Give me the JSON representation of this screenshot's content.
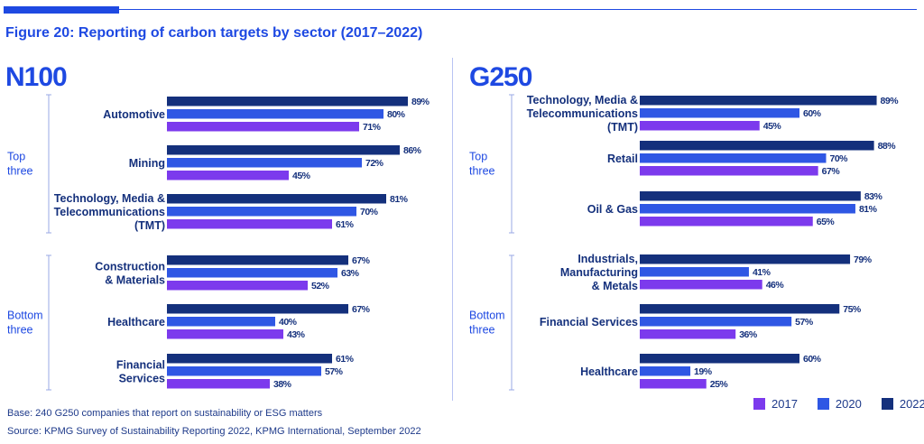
{
  "figure": {
    "title": "Figure 20: Reporting of carbon targets by sector (2017–2022)",
    "base_note": "Base: 240 G250 companies that report on sustainability or ESG matters",
    "source_note": "Source: KPMG Survey of Sustainability Reporting 2022, KPMG International, September 2022"
  },
  "colors": {
    "2017": "#7c3aed",
    "2020": "#2f57e4",
    "2022": "#14307c",
    "accent": "#1e49e2"
  },
  "legend": [
    {
      "label": "2017",
      "color": "#7c3aed"
    },
    {
      "label": "2020",
      "color": "#2f57e4"
    },
    {
      "label": "2022",
      "color": "#14307c"
    }
  ],
  "chart_data": [
    {
      "type": "bar",
      "orientation": "horizontal",
      "title": "N100",
      "groups": [
        {
          "label": "Top three",
          "categories": [
            "Automotive",
            "Mining",
            "Technology, Media & Telecommunications (TMT)"
          ]
        },
        {
          "label": "Bottom three",
          "categories": [
            "Construction & Materials",
            "Healthcare",
            "Financial Services"
          ]
        }
      ],
      "categories": [
        "Automotive",
        "Mining",
        "Technology, Media & Telecommunications (TMT)",
        "Construction & Materials",
        "Healthcare",
        "Financial Services"
      ],
      "category_lines": [
        [
          "Automotive"
        ],
        [
          "Mining"
        ],
        [
          "Technology, Media &",
          "Telecommunications",
          "(TMT)"
        ],
        [
          "Construction",
          "& Materials"
        ],
        [
          "Healthcare"
        ],
        [
          "Financial",
          "Services"
        ]
      ],
      "series": [
        {
          "name": "2022",
          "values": [
            89,
            86,
            81,
            67,
            67,
            61
          ]
        },
        {
          "name": "2020",
          "values": [
            80,
            72,
            70,
            63,
            40,
            57
          ]
        },
        {
          "name": "2017",
          "values": [
            71,
            45,
            61,
            52,
            43,
            38
          ]
        }
      ],
      "value_suffix": "%",
      "xlim": [
        0,
        100
      ],
      "grid": false
    },
    {
      "type": "bar",
      "orientation": "horizontal",
      "title": "G250",
      "groups": [
        {
          "label": "Top three",
          "categories": [
            "Technology, Media & Telecommunications (TMT)",
            "Retail",
            "Oil & Gas"
          ]
        },
        {
          "label": "Bottom three",
          "categories": [
            "Industrials, Manufacturing & Metals",
            "Financial Services",
            "Healthcare"
          ]
        }
      ],
      "categories": [
        "Technology, Media & Telecommunications (TMT)",
        "Retail",
        "Oil & Gas",
        "Industrials, Manufacturing & Metals",
        "Financial Services",
        "Healthcare"
      ],
      "category_lines": [
        [
          "Technology, Media &",
          "Telecommunications",
          "(TMT)"
        ],
        [
          "Retail"
        ],
        [
          "Oil & Gas"
        ],
        [
          "Industrials,",
          "Manufacturing",
          "& Metals"
        ],
        [
          "Financial Services"
        ],
        [
          "Healthcare"
        ]
      ],
      "series": [
        {
          "name": "2022",
          "values": [
            89,
            88,
            83,
            79,
            75,
            60
          ]
        },
        {
          "name": "2020",
          "values": [
            60,
            70,
            81,
            41,
            57,
            19
          ]
        },
        {
          "name": "2017",
          "values": [
            45,
            67,
            65,
            46,
            36,
            25
          ]
        }
      ],
      "value_suffix": "%",
      "xlim": [
        0,
        100
      ],
      "grid": false
    }
  ]
}
